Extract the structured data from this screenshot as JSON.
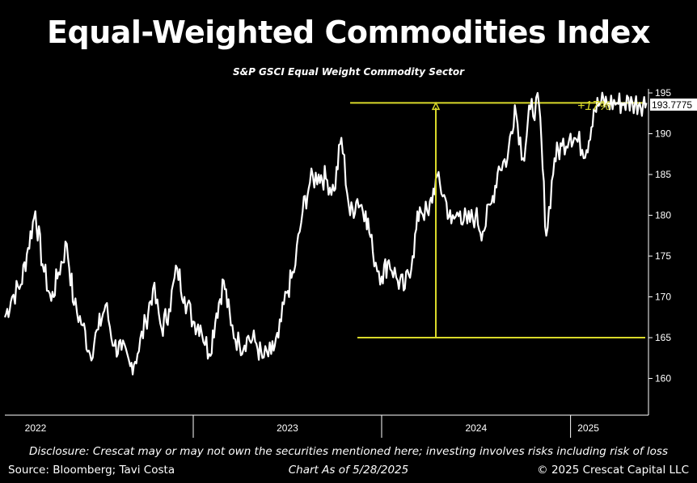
{
  "title": "Equal-Weighted Commodities Index",
  "subtitle": "S&P GSCI Equal Weight Commodity Sector",
  "annotation": "+17%",
  "last_value_label": "193.7775",
  "disclosure": "Disclosure: Crescat may or may not own the securities mentioned here; investing involves risks including risk of loss",
  "source": "Source: Bloomberg; Tavi Costa",
  "as_of": "Chart As of 5/28/2025",
  "copyright": "© 2025 Crescat Capital LLC",
  "colors": {
    "background": "#000000",
    "line": "#ffffff",
    "highlight": "#d9d92a"
  },
  "chart_data": {
    "type": "line",
    "title": "Equal-Weighted Commodities Index",
    "subtitle": "S&P GSCI Equal Weight Commodity Sector",
    "x_ticks": [
      "2022",
      "2023",
      "2024",
      "2025"
    ],
    "y_ticks": [
      160,
      165,
      170,
      175,
      180,
      185,
      190,
      195
    ],
    "ylim": [
      155.5,
      195.5
    ],
    "xlim": [
      "2022-01-01",
      "2025-06-01"
    ],
    "grid": false,
    "series": [
      {
        "dates": [
          "2022-01-01",
          "2022-01-15",
          "2022-02-01",
          "2022-02-15",
          "2022-03-01",
          "2022-03-15",
          "2022-04-01",
          "2022-04-15",
          "2022-05-01",
          "2022-05-15",
          "2022-06-01",
          "2022-06-15",
          "2022-07-01",
          "2022-07-15",
          "2022-08-01",
          "2022-08-15",
          "2022-09-01",
          "2022-09-15",
          "2022-10-01",
          "2022-10-15",
          "2022-11-01",
          "2022-11-15",
          "2022-12-01",
          "2022-12-15",
          "2023-01-01",
          "2023-01-15",
          "2023-02-01",
          "2023-02-15",
          "2023-03-01",
          "2023-03-15",
          "2023-04-01",
          "2023-04-15",
          "2023-05-01",
          "2023-05-15",
          "2023-06-01",
          "2023-06-15",
          "2023-07-01",
          "2023-07-15",
          "2023-08-01",
          "2023-08-15",
          "2023-09-01",
          "2023-09-15",
          "2023-10-01",
          "2023-10-15",
          "2023-11-01",
          "2023-11-15",
          "2023-12-01",
          "2023-12-15",
          "2024-01-01",
          "2024-01-15",
          "2024-02-01",
          "2024-02-15",
          "2024-03-01",
          "2024-03-15",
          "2024-04-01",
          "2024-04-15",
          "2024-05-01",
          "2024-05-15",
          "2024-06-01",
          "2024-06-15",
          "2024-07-01",
          "2024-07-15",
          "2024-08-01",
          "2024-08-15",
          "2024-09-01",
          "2024-09-15",
          "2024-10-01",
          "2024-10-15",
          "2024-11-01",
          "2024-11-15",
          "2024-12-01",
          "2024-12-15",
          "2025-01-01",
          "2025-01-15",
          "2025-02-01",
          "2025-02-15",
          "2025-03-01",
          "2025-03-15",
          "2025-04-01",
          "2025-04-15",
          "2025-05-01",
          "2025-05-15",
          "2025-05-28"
        ],
        "values": [
          167.5,
          170.0,
          171.5,
          176.0,
          180.5,
          174.0,
          169.5,
          173.0,
          176.5,
          169.0,
          166.5,
          163.0,
          166.0,
          169.0,
          164.0,
          163.5,
          161.5,
          163.0,
          167.0,
          171.0,
          166.0,
          168.5,
          173.5,
          170.0,
          167.0,
          166.5,
          163.0,
          168.0,
          172.0,
          166.5,
          164.0,
          165.0,
          164.5,
          162.5,
          163.0,
          165.0,
          170.5,
          173.0,
          180.5,
          184.0,
          185.0,
          184.5,
          183.0,
          189.5,
          180.0,
          182.0,
          180.5,
          175.5,
          172.5,
          174.5,
          172.0,
          171.0,
          175.0,
          181.0,
          180.0,
          184.5,
          182.5,
          179.0,
          180.5,
          179.0,
          180.0,
          178.0,
          181.5,
          186.0,
          187.0,
          193.5,
          187.0,
          193.0,
          193.5,
          177.5,
          187.0,
          188.5,
          190.0,
          189.0,
          188.0,
          193.0,
          193.78,
          193.78,
          193.78,
          193.78,
          193.78,
          193.78,
          193.78
        ]
      }
    ],
    "reference_lines": [
      {
        "y": 165
      },
      {
        "y": 193.78
      }
    ],
    "arrow": {
      "date": "2024-04-15",
      "from": 165,
      "to": 193.78
    },
    "annotation": "+17%",
    "last_value": 193.7775
  }
}
